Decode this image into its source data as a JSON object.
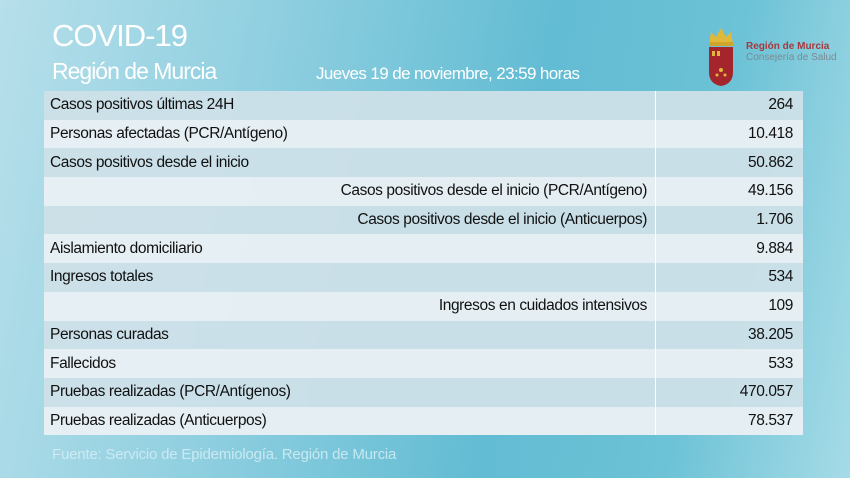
{
  "header": {
    "title": "COVID-19",
    "subtitle": "Región de Murcia",
    "date": "Jueves 19 de noviembre, 23:59 horas"
  },
  "logo": {
    "line1": "Región de Murcia",
    "line2": "Consejería de Salud"
  },
  "table": {
    "rows": [
      {
        "label": "Casos positivos últimas 24H",
        "value": "264",
        "indent": false
      },
      {
        "label": "Personas afectadas (PCR/Antígeno)",
        "value": "10.418",
        "indent": false
      },
      {
        "label": "Casos positivos desde el inicio",
        "value": "50.862",
        "indent": false
      },
      {
        "label": "Casos positivos desde el inicio (PCR/Antígeno)",
        "value": "49.156",
        "indent": true
      },
      {
        "label": "Casos positivos desde el inicio (Anticuerpos)",
        "value": "1.706",
        "indent": true
      },
      {
        "label": "Aislamiento domiciliario",
        "value": "9.884",
        "indent": false
      },
      {
        "label": "Ingresos totales",
        "value": "534",
        "indent": false
      },
      {
        "label": "Ingresos en cuidados intensivos",
        "value": "109",
        "indent": true
      },
      {
        "label": "Personas curadas",
        "value": "38.205",
        "indent": false
      },
      {
        "label": "Fallecidos",
        "value": "533",
        "indent": false
      },
      {
        "label": "Pruebas realizadas (PCR/Antígenos)",
        "value": "470.057",
        "indent": false
      },
      {
        "label": "Pruebas realizadas (Anticuerpos)",
        "value": "78.537",
        "indent": false
      }
    ]
  },
  "footer": {
    "source": "Fuente: Servicio de Epidemiología.  Región de Murcia"
  },
  "colors": {
    "logo_red": "#a4262c",
    "logo_gold": "#e0b83a"
  }
}
